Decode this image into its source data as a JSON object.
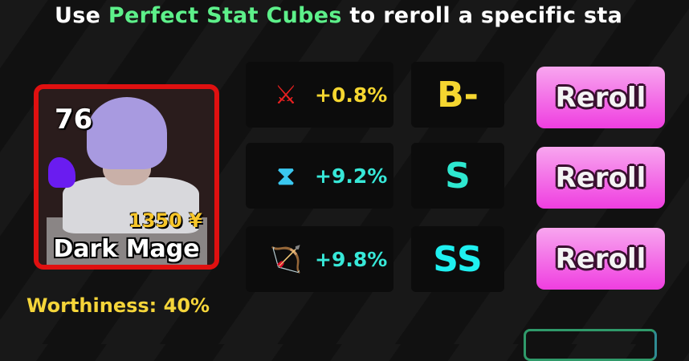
{
  "header": {
    "prefix": "Use ",
    "highlight": "Perfect Stat Cubes",
    "suffix": " to reroll a specific sta"
  },
  "unit": {
    "level": "76",
    "price": "1350 ¥",
    "name": "Dark Mage",
    "border_color": "#e01010"
  },
  "worthiness": "Worthiness: 40%",
  "stats": [
    {
      "icon": "sword-damage-icon",
      "value": "+0.8%",
      "value_color": "#f5d630",
      "grade": "B-",
      "grade_color": "#f5d630",
      "reroll": "Reroll"
    },
    {
      "icon": "hourglass-cooldown-icon",
      "value": "+9.2%",
      "value_color": "#37e8d8",
      "grade": "S",
      "grade_color": "#2ee8d0",
      "reroll": "Reroll"
    },
    {
      "icon": "bow-range-icon",
      "value": "+9.8%",
      "value_color": "#37e8d8",
      "grade": "SS",
      "grade_color": "#1ff0f0",
      "reroll": "Reroll"
    }
  ]
}
